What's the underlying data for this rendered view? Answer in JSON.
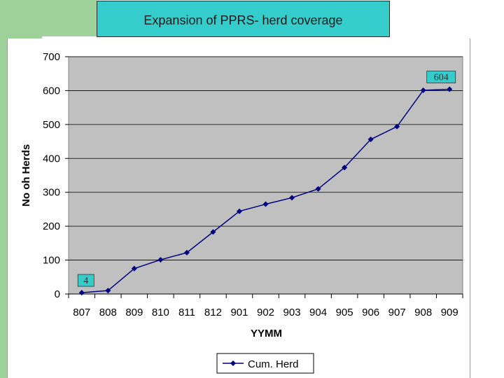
{
  "title": "Expansion of PPRS- herd coverage",
  "colors": {
    "title_bg": "#35cccc",
    "plot_bg": "#c0c0c0",
    "series": "#000080",
    "side_strip": "#9fd19a"
  },
  "chart_data": {
    "type": "line",
    "title": "Expansion of PPRS- herd coverage",
    "xlabel": "YYMM",
    "ylabel": "No oh Herds",
    "categories": [
      "807",
      "808",
      "809",
      "810",
      "811",
      "812",
      "901",
      "902",
      "903",
      "904",
      "905",
      "906",
      "907",
      "908",
      "909"
    ],
    "series": [
      {
        "name": "Cum. Herd",
        "values": [
          4,
          10,
          75,
          101,
          122,
          183,
          244,
          265,
          284,
          310,
          373,
          456,
          494,
          601,
          604
        ]
      }
    ],
    "ylim": [
      0,
      700
    ],
    "yticks": [
      0,
      100,
      200,
      300,
      400,
      500,
      600,
      700
    ],
    "grid": true,
    "legend": "bottom",
    "data_labels": [
      {
        "index": 0,
        "text": "4"
      },
      {
        "index": 14,
        "text": "604"
      }
    ]
  }
}
